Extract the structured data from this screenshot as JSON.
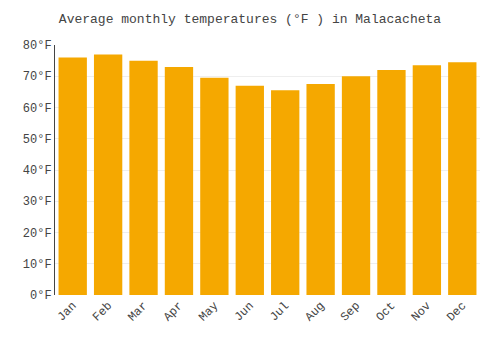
{
  "chart_data": {
    "type": "bar",
    "title": "Average monthly temperatures (°F ) in Malacacheta",
    "categories": [
      "Jan",
      "Feb",
      "Mar",
      "Apr",
      "May",
      "Jun",
      "Jul",
      "Aug",
      "Sep",
      "Oct",
      "Nov",
      "Dec"
    ],
    "values": [
      76,
      77,
      75,
      73,
      69.5,
      67,
      65.5,
      67.5,
      70,
      72,
      73.5,
      74.5
    ],
    "color": "#F5A800",
    "ylim": [
      0,
      80
    ],
    "yticks": [
      {
        "value": 0,
        "label": "0°F"
      },
      {
        "value": 10,
        "label": "10°F"
      },
      {
        "value": 20,
        "label": "20°F"
      },
      {
        "value": 30,
        "label": "30°F"
      },
      {
        "value": 40,
        "label": "40°F"
      },
      {
        "value": 50,
        "label": "50°F"
      },
      {
        "value": 60,
        "label": "60°F"
      },
      {
        "value": 70,
        "label": "70°F"
      },
      {
        "value": 80,
        "label": "80°F"
      }
    ],
    "grid": true
  }
}
